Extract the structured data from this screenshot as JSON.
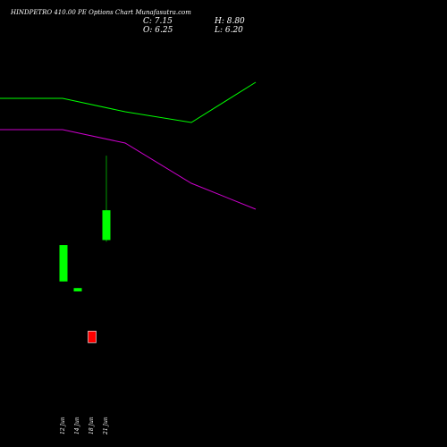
{
  "header": {
    "title": "HINDPETRO 410.00 PE Options Chart Munafasutra.com",
    "close": "C: 7.15",
    "high": "H: 8.80",
    "open": "O: 6.25",
    "low": "L: 6.20"
  },
  "colors": {
    "background": "#000000",
    "up_candle": "#00ff00",
    "down_candle": "#ff0000",
    "upper_line": "#00ff00",
    "lower_line": "#cc00cc",
    "text": "#ffffff"
  },
  "chart_data": {
    "type": "candlestick",
    "title": "HINDPETRO 410.00 PE Options Chart Munafasutra.com",
    "categories": [
      "12 Jun",
      "14 Jun",
      "18 Jun",
      "21 Jun"
    ],
    "candles": [
      {
        "date": "12 Jun",
        "open": 5.0,
        "high": 6.1,
        "low": 5.0,
        "close": 6.1,
        "direction": "up"
      },
      {
        "date": "14 Jun",
        "open": 4.7,
        "high": 4.8,
        "low": 4.7,
        "close": 4.8,
        "direction": "up"
      },
      {
        "date": "18 Jun",
        "open": 3.5,
        "high": 3.5,
        "low": 3.15,
        "close": 3.15,
        "direction": "down"
      },
      {
        "date": "21 Jun",
        "open": 6.25,
        "high": 8.8,
        "low": 6.2,
        "close": 7.15,
        "direction": "up"
      }
    ],
    "lines": [
      {
        "color": "#00ff00",
        "points": [
          [
            0,
            110
          ],
          [
            70,
            110
          ],
          [
            140,
            125
          ],
          [
            214,
            137
          ],
          [
            286,
            92
          ]
        ]
      },
      {
        "color": "#cc00cc",
        "points": [
          [
            0,
            145
          ],
          [
            70,
            145
          ],
          [
            140,
            160
          ],
          [
            214,
            205
          ],
          [
            286,
            234
          ]
        ]
      }
    ],
    "ylim": [
      0,
      13.5
    ]
  }
}
